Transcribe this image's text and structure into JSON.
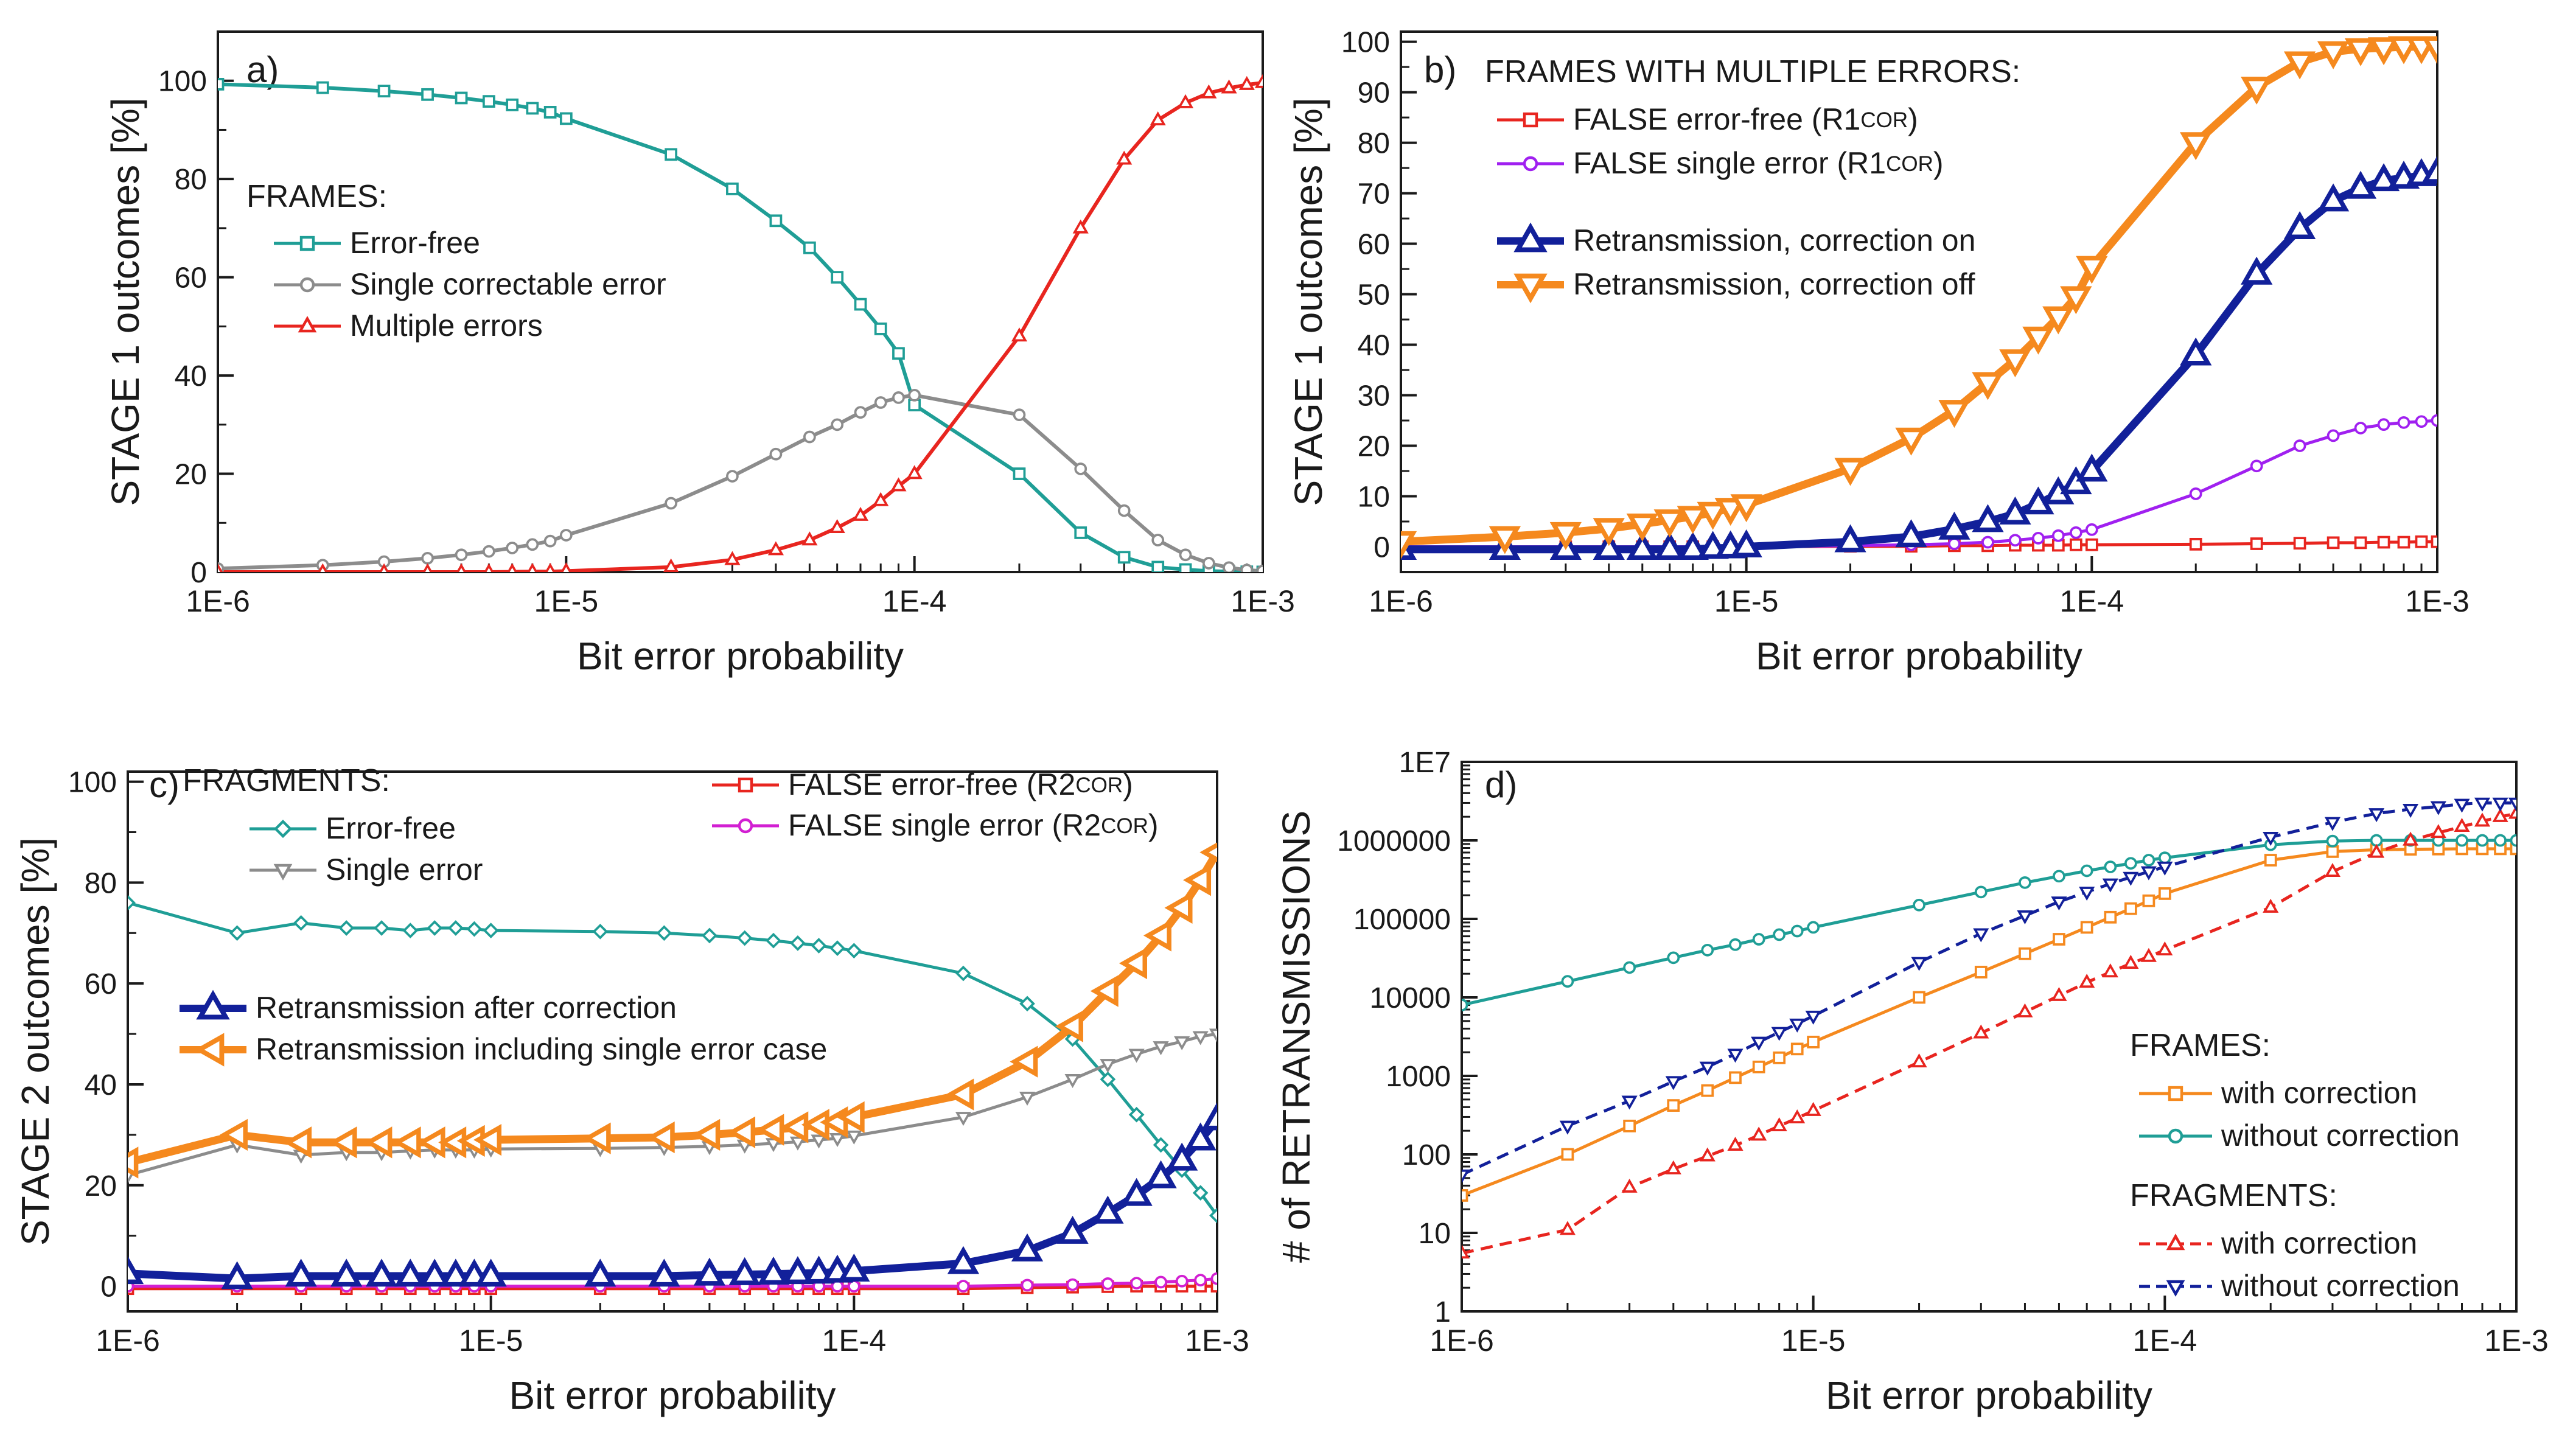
{
  "chart_data": [
    {
      "type": "line",
      "panel": "a)",
      "xscale": "log",
      "yscale": "linear",
      "xlim": [
        1e-06,
        0.001
      ],
      "ylim": [
        0,
        110
      ],
      "xticks": [
        {
          "value": 1e-06,
          "label": "1E-6"
        },
        {
          "value": 1e-05,
          "label": "1E-5"
        },
        {
          "value": 0.0001,
          "label": "1E-4"
        },
        {
          "value": 0.001,
          "label": "1E-3"
        }
      ],
      "yticks": [
        {
          "value": 0,
          "label": "0"
        },
        {
          "value": 20,
          "label": "20"
        },
        {
          "value": 40,
          "label": "40"
        },
        {
          "value": 60,
          "label": "60"
        },
        {
          "value": 80,
          "label": "80"
        },
        {
          "value": 100,
          "label": "100"
        }
      ],
      "xlabel": "Bit error probability",
      "ylabel": "STAGE 1 outcomes [%]",
      "legend_title": "FRAMES:",
      "legend_placement": "center-left",
      "x": [
        1e-06,
        2e-06,
        3e-06,
        4e-06,
        5e-06,
        6e-06,
        7e-06,
        8e-06,
        9e-06,
        1e-05,
        2e-05,
        3e-05,
        4e-05,
        5e-05,
        6e-05,
        7e-05,
        8e-05,
        9e-05,
        0.0001,
        0.0002,
        0.0003,
        0.0004,
        0.0005,
        0.0006,
        0.0007,
        0.0008,
        0.0009,
        0.001
      ],
      "series": [
        {
          "name": "Error-free",
          "color": "#1f9e96",
          "marker": "square",
          "dash": "solid",
          "width": 6,
          "values": [
            99.3,
            98.6,
            97.9,
            97.2,
            96.5,
            95.8,
            95.1,
            94.4,
            93.6,
            92.3,
            85.0,
            78.0,
            71.5,
            66.0,
            60.0,
            54.5,
            49.5,
            44.5,
            34.0,
            20.0,
            8.0,
            3.0,
            1.0,
            0.5,
            0.2,
            0.1,
            0.05,
            0.02
          ]
        },
        {
          "name": "Single correctable error",
          "color": "#8c8c8c",
          "marker": "circle",
          "dash": "solid",
          "width": 6,
          "values": [
            0.7,
            1.4,
            2.1,
            2.8,
            3.5,
            4.2,
            4.9,
            5.6,
            6.3,
            7.5,
            14.0,
            19.5,
            24.0,
            27.5,
            30.0,
            32.5,
            34.5,
            35.5,
            36.0,
            32.0,
            21.0,
            12.5,
            6.5,
            3.5,
            1.8,
            0.9,
            0.4,
            0.2
          ]
        },
        {
          "name": "Multiple errors",
          "color": "#e8251f",
          "marker": "triangle-up",
          "dash": "solid",
          "width": 6,
          "values": [
            0.0,
            0.0,
            0.0,
            0.0,
            0.0,
            0.0,
            0.05,
            0.1,
            0.1,
            0.2,
            1.0,
            2.5,
            4.5,
            6.5,
            9.0,
            11.5,
            14.5,
            17.5,
            20.0,
            48.0,
            70.0,
            84.0,
            92.0,
            95.5,
            97.5,
            98.5,
            99.2,
            99.6
          ]
        }
      ]
    },
    {
      "type": "line",
      "panel": "b)",
      "xscale": "log",
      "yscale": "linear",
      "xlim": [
        1e-06,
        0.001
      ],
      "ylim": [
        -5,
        102
      ],
      "xticks": [
        {
          "value": 1e-06,
          "label": "1E-6"
        },
        {
          "value": 1e-05,
          "label": "1E-5"
        },
        {
          "value": 0.0001,
          "label": "1E-4"
        },
        {
          "value": 0.001,
          "label": "1E-3"
        }
      ],
      "yticks": [
        {
          "value": 0,
          "label": "0"
        },
        {
          "value": 10,
          "label": "10"
        },
        {
          "value": 20,
          "label": "20"
        },
        {
          "value": 30,
          "label": "30"
        },
        {
          "value": 40,
          "label": "40"
        },
        {
          "value": 50,
          "label": "50"
        },
        {
          "value": 60,
          "label": "60"
        },
        {
          "value": 70,
          "label": "70"
        },
        {
          "value": 80,
          "label": "80"
        },
        {
          "value": 90,
          "label": "90"
        },
        {
          "value": 100,
          "label": "100"
        }
      ],
      "xlabel": "Bit error probability",
      "ylabel": "STAGE 1 outcomes [%]",
      "legend_title": "FRAMES WITH MULTIPLE ERRORS:",
      "legend_placement": "top-left",
      "x": [
        1e-06,
        2e-06,
        3e-06,
        4e-06,
        5e-06,
        6e-06,
        7e-06,
        8e-06,
        9e-06,
        1e-05,
        2e-05,
        3e-05,
        4e-05,
        5e-05,
        6e-05,
        7e-05,
        8e-05,
        9e-05,
        0.0001,
        0.0002,
        0.0003,
        0.0004,
        0.0005,
        0.0006,
        0.0007,
        0.0008,
        0.0009,
        0.001
      ],
      "series": [
        {
          "name": "FALSE error-free (R1",
          "sub": "COR",
          "suffix": ")",
          "color": "#e8251f",
          "marker": "square",
          "dash": "solid",
          "width": 5,
          "values": [
            0,
            0,
            0,
            0,
            0,
            0,
            0,
            0,
            0,
            0,
            0.1,
            0.1,
            0.2,
            0.2,
            0.3,
            0.3,
            0.3,
            0.4,
            0.4,
            0.5,
            0.6,
            0.7,
            0.8,
            0.8,
            0.9,
            0.9,
            1.0,
            1.0
          ]
        },
        {
          "name": "FALSE single error (R1",
          "sub": "COR",
          "suffix": ")",
          "color": "#a020f0",
          "marker": "circle",
          "dash": "solid",
          "width": 5,
          "values": [
            0,
            0,
            0,
            0,
            0,
            0,
            0,
            0,
            0,
            0,
            0.2,
            0.4,
            0.6,
            0.9,
            1.3,
            1.7,
            2.2,
            2.8,
            3.4,
            10.5,
            16.0,
            20.0,
            22.0,
            23.5,
            24.2,
            24.6,
            24.8,
            25.0
          ]
        },
        {
          "name": "Retransmission, correction on",
          "color": "#12209a",
          "marker": "triangle-up",
          "dash": "solid",
          "width": 13,
          "values": [
            -0.5,
            -0.5,
            -0.5,
            -0.5,
            -0.5,
            -0.5,
            -0.5,
            -0.3,
            -0.2,
            0,
            1.0,
            2.0,
            3.5,
            5.0,
            6.5,
            8.5,
            10.5,
            12.5,
            15.0,
            38.0,
            54.0,
            63.0,
            68.5,
            71.0,
            72.5,
            73.0,
            73.5,
            74.0
          ]
        },
        {
          "name": "Retransmission,  correction off",
          "color": "#f5891e",
          "marker": "triangle-down",
          "dash": "solid",
          "width": 13,
          "values": [
            1.0,
            2.0,
            2.8,
            3.6,
            4.5,
            5.3,
            6.0,
            6.8,
            7.6,
            8.3,
            15.5,
            21.5,
            27.0,
            32.5,
            37.0,
            41.5,
            45.5,
            49.5,
            55.5,
            80.0,
            91.0,
            96.0,
            98.0,
            98.6,
            98.8,
            99.0,
            99.0,
            99.0
          ]
        }
      ]
    },
    {
      "type": "line",
      "panel": "c)",
      "xscale": "log",
      "yscale": "linear",
      "xlim": [
        1e-06,
        0.001
      ],
      "ylim": [
        -5,
        102
      ],
      "xticks": [
        {
          "value": 1e-06,
          "label": "1E-6"
        },
        {
          "value": 1e-05,
          "label": "1E-5"
        },
        {
          "value": 0.0001,
          "label": "1E-4"
        },
        {
          "value": 0.001,
          "label": "1E-3"
        }
      ],
      "yticks": [
        {
          "value": 0,
          "label": "0"
        },
        {
          "value": 20,
          "label": "20"
        },
        {
          "value": 40,
          "label": "40"
        },
        {
          "value": 60,
          "label": "60"
        },
        {
          "value": 80,
          "label": "80"
        },
        {
          "value": 100,
          "label": "100"
        }
      ],
      "xlabel": "Bit error probability",
      "ylabel": "STAGE 2 outcomes [%]",
      "legend_title": "FRAGMENTS:",
      "legend_placement": "top",
      "x": [
        1e-06,
        2e-06,
        3e-06,
        4e-06,
        5e-06,
        6e-06,
        7e-06,
        8e-06,
        9e-06,
        1e-05,
        2e-05,
        3e-05,
        4e-05,
        5e-05,
        6e-05,
        7e-05,
        8e-05,
        9e-05,
        0.0001,
        0.0002,
        0.0003,
        0.0004,
        0.0005,
        0.0006,
        0.0007,
        0.0008,
        0.0009,
        0.001
      ],
      "series": [
        {
          "name": "Error-free",
          "color": "#1f9e96",
          "marker": "diamond",
          "dash": "solid",
          "width": 5,
          "values": [
            76.0,
            70.0,
            72.0,
            71.0,
            71.0,
            70.5,
            71.0,
            71.0,
            70.8,
            70.5,
            70.3,
            70.0,
            69.5,
            69.0,
            68.5,
            68.0,
            67.5,
            67.0,
            66.5,
            62.0,
            56.0,
            49.0,
            41.0,
            34.0,
            28.0,
            23.0,
            18.5,
            14.0
          ]
        },
        {
          "name": "Single error",
          "color": "#8c8c8c",
          "marker": "triangle-down",
          "dash": "solid",
          "width": 5,
          "values": [
            22.0,
            28.0,
            26.0,
            26.5,
            26.5,
            26.8,
            27.0,
            27.0,
            27.0,
            27.2,
            27.3,
            27.5,
            27.7,
            28.0,
            28.3,
            28.6,
            29.0,
            29.3,
            29.8,
            33.5,
            37.5,
            41.0,
            44.0,
            46.0,
            47.5,
            48.5,
            49.5,
            50.0
          ]
        },
        {
          "name": "FALSE error-free (R2",
          "sub": "COR",
          "suffix": ")",
          "color": "#e8251f",
          "marker": "square",
          "dash": "solid",
          "width": 5,
          "values": [
            -0.5,
            -0.5,
            -0.5,
            -0.5,
            -0.5,
            -0.5,
            -0.5,
            -0.5,
            -0.5,
            -0.5,
            -0.5,
            -0.5,
            -0.5,
            -0.5,
            -0.5,
            -0.5,
            -0.5,
            -0.5,
            -0.5,
            -0.5,
            -0.3,
            -0.2,
            -0.1,
            0,
            0,
            0,
            0,
            0
          ]
        },
        {
          "name": "FALSE single error (R2",
          "sub": "COR",
          "suffix": ")",
          "color": "#d21fd2",
          "marker": "circle",
          "dash": "solid",
          "width": 5,
          "values": [
            0,
            0,
            0,
            0,
            0,
            0,
            0,
            0,
            0,
            0,
            0,
            0,
            0,
            0,
            0,
            0,
            0,
            0,
            0,
            0,
            0.2,
            0.3,
            0.5,
            0.6,
            0.8,
            1.0,
            1.2,
            1.5
          ]
        },
        {
          "name": "Retransmission after correction",
          "color": "#12209a",
          "marker": "triangle-up",
          "dash": "solid",
          "width": 13,
          "values": [
            2.5,
            1.5,
            2.0,
            2.0,
            2.0,
            2.0,
            2.0,
            2.0,
            2.0,
            2.0,
            2.0,
            2.0,
            2.2,
            2.3,
            2.4,
            2.5,
            2.6,
            2.8,
            3.0,
            4.5,
            7.0,
            10.5,
            14.5,
            18.0,
            21.5,
            25.0,
            29.0,
            33.0
          ]
        },
        {
          "name": "Retransmission including single error case",
          "color": "#f5891e",
          "marker": "triangle-left",
          "dash": "solid",
          "width": 13,
          "values": [
            24.5,
            30.0,
            28.5,
            28.5,
            28.5,
            28.5,
            28.5,
            28.5,
            28.8,
            29.0,
            29.3,
            29.5,
            30.0,
            30.5,
            31.0,
            31.5,
            32.0,
            32.5,
            33.5,
            38.0,
            44.5,
            51.5,
            58.5,
            64.0,
            69.5,
            75.0,
            80.5,
            86.0
          ]
        }
      ]
    },
    {
      "type": "line",
      "panel": "d)",
      "xscale": "log",
      "yscale": "log",
      "xlim": [
        1e-06,
        0.001
      ],
      "ylim": [
        1,
        10000000.0
      ],
      "xticks": [
        {
          "value": 1e-06,
          "label": "1E-6"
        },
        {
          "value": 1e-05,
          "label": "1E-5"
        },
        {
          "value": 0.0001,
          "label": "1E-4"
        },
        {
          "value": 0.001,
          "label": "1E-3"
        }
      ],
      "yticks": [
        {
          "value": 1,
          "label": "1"
        },
        {
          "value": 10,
          "label": "10"
        },
        {
          "value": 100,
          "label": "100"
        },
        {
          "value": 1000,
          "label": "1000"
        },
        {
          "value": 10000,
          "label": "10000"
        },
        {
          "value": 100000,
          "label": "100000"
        },
        {
          "value": 1000000,
          "label": "1000000"
        },
        {
          "value": 10000000,
          "label": "1E7"
        }
      ],
      "xlabel": "Bit error probability",
      "ylabel": "# of RETRANSMISSIONS",
      "legend_placement": "bottom-right",
      "legend_groups": [
        {
          "title": "FRAMES:",
          "series": [
            0,
            1
          ]
        },
        {
          "title": "FRAGMENTS:",
          "series": [
            2,
            3
          ]
        }
      ],
      "x": [
        1e-06,
        2e-06,
        3e-06,
        4e-06,
        5e-06,
        6e-06,
        7e-06,
        8e-06,
        9e-06,
        1e-05,
        2e-05,
        3e-05,
        4e-05,
        5e-05,
        6e-05,
        7e-05,
        8e-05,
        9e-05,
        0.0001,
        0.0002,
        0.0003,
        0.0004,
        0.0005,
        0.0006,
        0.0007,
        0.0008,
        0.0009,
        0.001
      ],
      "series": [
        {
          "name": "with correction",
          "color": "#f5891e",
          "marker": "square",
          "dash": "solid",
          "width": 5,
          "values": [
            30,
            100,
            230,
            420,
            650,
            950,
            1300,
            1700,
            2200,
            2700,
            10000,
            21000,
            36000,
            55000,
            78000,
            105000,
            135000,
            170000,
            210000,
            560000,
            720000,
            760000,
            770000,
            775000,
            780000,
            780000,
            780000,
            780000
          ]
        },
        {
          "name": "without correction",
          "color": "#1f9e96",
          "marker": "circle",
          "dash": "solid",
          "width": 5,
          "values": [
            8000,
            16000,
            24000,
            32000,
            40000,
            47000,
            55000,
            63000,
            70000,
            78000,
            150000,
            220000,
            290000,
            350000,
            410000,
            460000,
            510000,
            560000,
            600000,
            880000,
            980000,
            1000000,
            1000000,
            1000000,
            1000000,
            1000000,
            1000000,
            1000000
          ]
        },
        {
          "name": "with correction",
          "color": "#e8251f",
          "marker": "triangle-up",
          "dash": "dash",
          "width": 5,
          "values": [
            5.5,
            11,
            38,
            65,
            95,
            130,
            175,
            230,
            290,
            360,
            1500,
            3500,
            6500,
            10500,
            15500,
            21000,
            27000,
            33000,
            40000,
            140000,
            400000,
            700000,
            1000000,
            1250000,
            1500000,
            1750000,
            2000000,
            2200000
          ]
        },
        {
          "name": "without correction",
          "color": "#12209a",
          "marker": "triangle-down",
          "dash": "dash",
          "width": 5,
          "values": [
            55,
            230,
            480,
            850,
            1300,
            1900,
            2700,
            3600,
            4600,
            5800,
            28000,
            65000,
            110000,
            165000,
            220000,
            280000,
            340000,
            400000,
            460000,
            1100000,
            1700000,
            2200000,
            2500000,
            2700000,
            2900000,
            3000000,
            3000000,
            3000000
          ]
        }
      ]
    }
  ]
}
